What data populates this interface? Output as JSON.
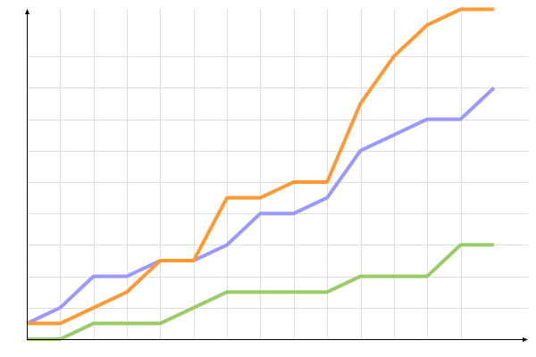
{
  "chart_data": {
    "type": "line",
    "title": "",
    "xlabel": "",
    "ylabel": "",
    "x": [
      0,
      1,
      2,
      3,
      4,
      5,
      6,
      7,
      8,
      9,
      10,
      11,
      12,
      13,
      14
    ],
    "xlim": [
      0,
      15
    ],
    "ylim": [
      0,
      21
    ],
    "grid": true,
    "legend": "none",
    "series": [
      {
        "color": "#9999ff",
        "values": [
          1,
          2,
          4,
          4,
          5,
          5,
          6,
          8,
          8,
          9,
          12,
          13,
          14,
          14,
          16
        ]
      },
      {
        "color": "#ff9933",
        "values": [
          1,
          1,
          2,
          3,
          5,
          5,
          9,
          9,
          10,
          10,
          15,
          18,
          20,
          21,
          21
        ]
      },
      {
        "color": "#99cc66",
        "values": [
          0,
          0,
          1,
          1,
          1,
          2,
          3,
          3,
          3,
          3,
          4,
          4,
          4,
          6,
          6
        ]
      }
    ]
  }
}
